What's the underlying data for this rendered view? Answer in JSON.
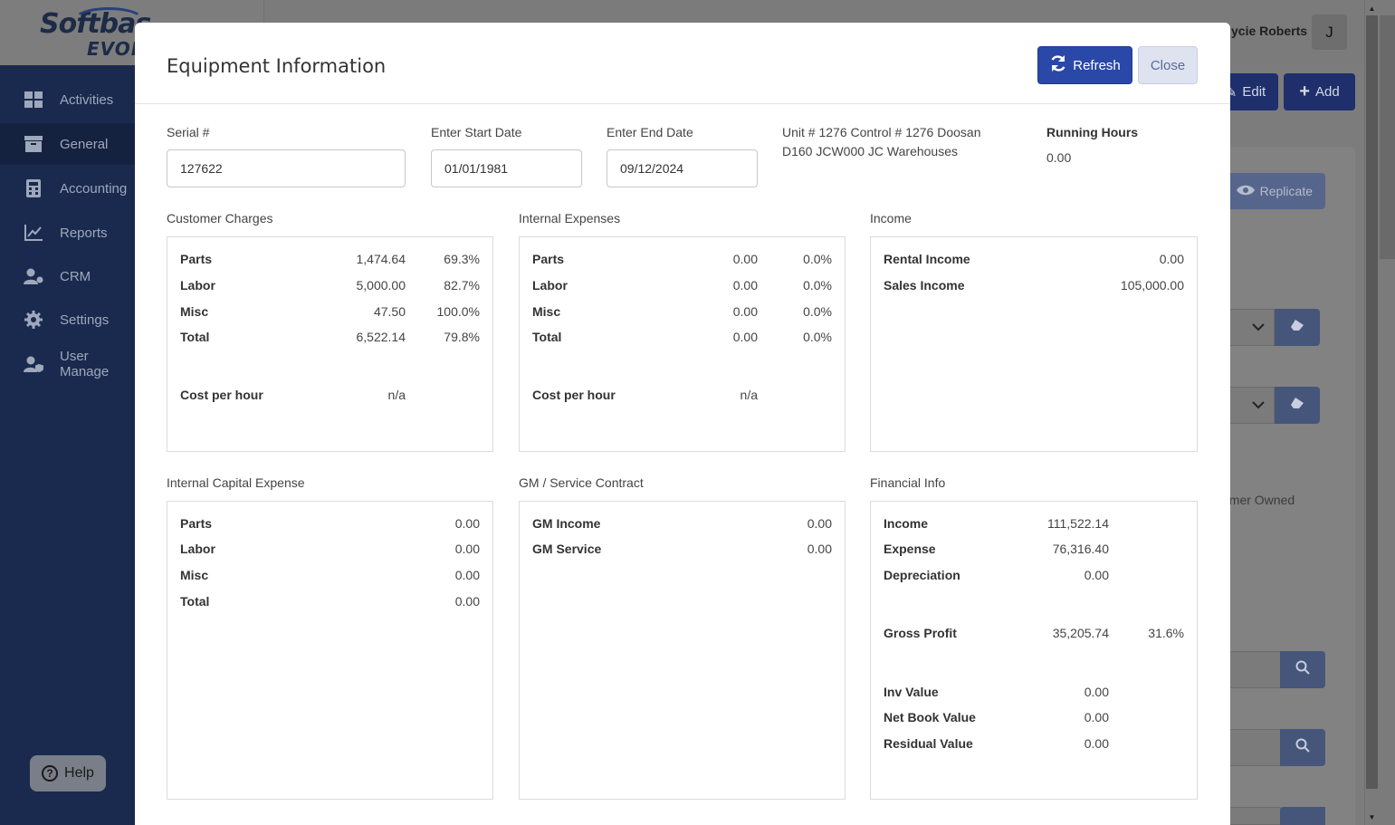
{
  "background": {
    "logo_line1": "Softbas",
    "logo_line2": "EVOLU",
    "user_name": "ycie Roberts",
    "avatar_initial": "J",
    "sidebar": [
      {
        "label": "Activities",
        "icon": "dashboard-grid-icon"
      },
      {
        "label": "General",
        "icon": "archive-box-icon"
      },
      {
        "label": "Accounting",
        "icon": "calculator-icon"
      },
      {
        "label": "Reports",
        "icon": "line-chart-icon"
      },
      {
        "label": "CRM",
        "icon": "user-gear-icon"
      },
      {
        "label": "Settings",
        "icon": "gear-icon"
      },
      {
        "label": "User Manage",
        "icon": "user-shield-icon"
      }
    ],
    "edit_label": "Edit",
    "add_label": "Add",
    "replicate_label": "Replicate",
    "owned_text": "omer Owned",
    "help_label": "Help"
  },
  "modal": {
    "title": "Equipment Information",
    "refresh_label": "Refresh",
    "close_label": "Close",
    "serial_label": "Serial #",
    "serial_value": "127622",
    "start_label": "Enter Start Date",
    "start_value": "01/01/1981",
    "end_label": "Enter End Date",
    "end_value": "09/12/2024",
    "unit_info": "Unit # 1276 Control # 1276 Doosan D160 JCW000 JC Warehouses",
    "running_hours_label": "Running Hours",
    "running_hours_value": "0.00"
  },
  "customer_charges": {
    "title": "Customer Charges",
    "rows": [
      {
        "label": "Parts",
        "amount": "1,474.64",
        "pct": "69.3%"
      },
      {
        "label": "Labor",
        "amount": "5,000.00",
        "pct": "82.7%"
      },
      {
        "label": "Misc",
        "amount": "47.50",
        "pct": "100.0%"
      },
      {
        "label": "Total",
        "amount": "6,522.14",
        "pct": "79.8%"
      }
    ],
    "cph_label": "Cost per hour",
    "cph_value": "n/a"
  },
  "internal_expenses": {
    "title": "Internal Expenses",
    "rows": [
      {
        "label": "Parts",
        "amount": "0.00",
        "pct": "0.0%"
      },
      {
        "label": "Labor",
        "amount": "0.00",
        "pct": "0.0%"
      },
      {
        "label": "Misc",
        "amount": "0.00",
        "pct": "0.0%"
      },
      {
        "label": "Total",
        "amount": "0.00",
        "pct": "0.0%"
      }
    ],
    "cph_label": "Cost per hour",
    "cph_value": "n/a"
  },
  "income": {
    "title": "Income",
    "rows": [
      {
        "label": "Rental Income",
        "amount": "0.00"
      },
      {
        "label": "Sales Income",
        "amount": "105,000.00"
      }
    ]
  },
  "internal_capital_expense": {
    "title": "Internal Capital Expense",
    "rows": [
      {
        "label": "Parts",
        "amount": "0.00"
      },
      {
        "label": "Labor",
        "amount": "0.00"
      },
      {
        "label": "Misc",
        "amount": "0.00"
      },
      {
        "label": "Total",
        "amount": "0.00"
      }
    ]
  },
  "gm_service_contract": {
    "title": "GM / Service Contract",
    "rows": [
      {
        "label": "GM Income",
        "amount": "0.00"
      },
      {
        "label": "GM Service",
        "amount": "0.00"
      }
    ]
  },
  "financial_info": {
    "title": "Financial Info",
    "rows": [
      {
        "label": "Income",
        "amount": "111,522.14"
      },
      {
        "label": "Expense",
        "amount": "76,316.40"
      },
      {
        "label": "Depreciation",
        "amount": "0.00"
      }
    ],
    "gross_profit": {
      "label": "Gross Profit",
      "amount": "35,205.74",
      "pct": "31.6%"
    },
    "value_rows": [
      {
        "label": "Inv Value",
        "amount": "0.00"
      },
      {
        "label": "Net Book Value",
        "amount": "0.00"
      },
      {
        "label": "Residual Value",
        "amount": "0.00"
      }
    ]
  }
}
